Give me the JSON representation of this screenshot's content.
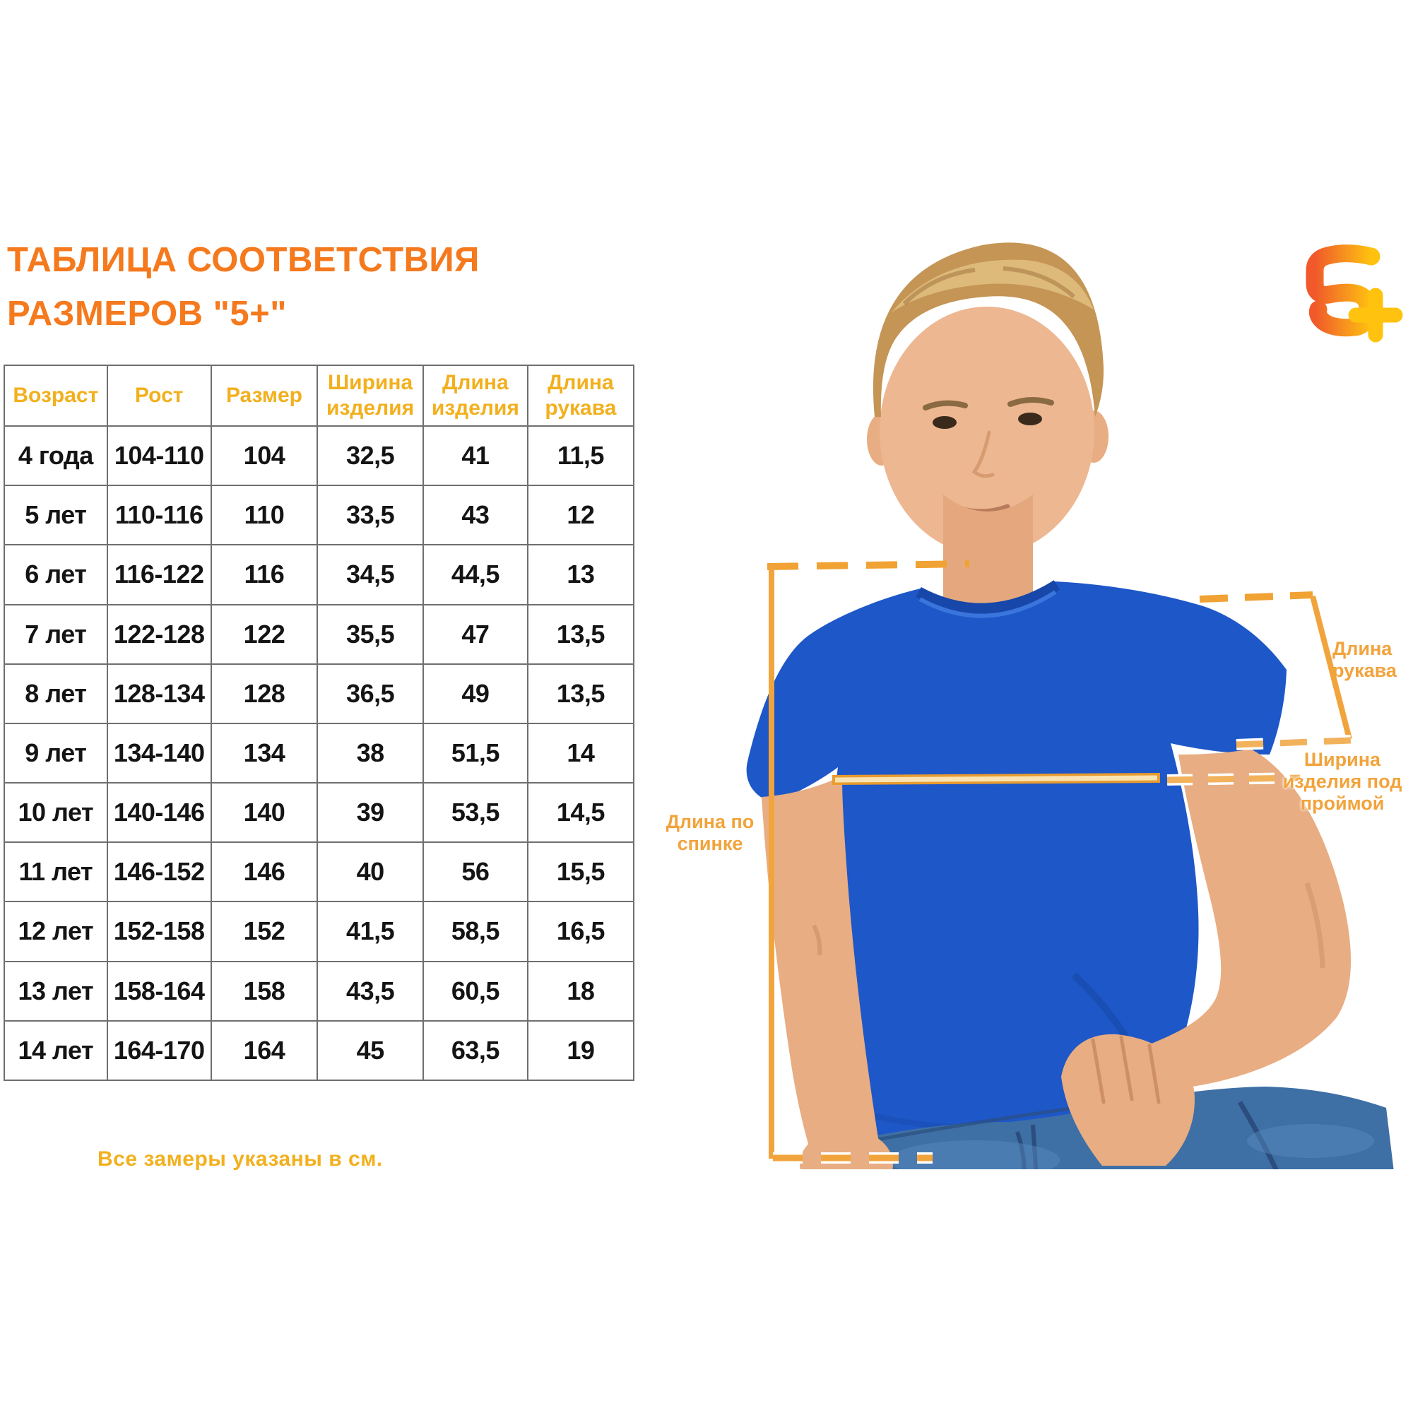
{
  "title": {
    "line1": "ТАБЛИЦА СООТВЕТСТВИЯ",
    "line2": "РАЗМЕРОВ \"5+\""
  },
  "logo": {
    "text": "5+"
  },
  "table": {
    "headers": [
      "Возраст",
      "Рост",
      "Размер",
      "Ширина изделия",
      "Длина изделия",
      "Длина рукава"
    ],
    "rows": [
      [
        "4 года",
        "104-110",
        "104",
        "32,5",
        "41",
        "11,5"
      ],
      [
        "5 лет",
        "110-116",
        "110",
        "33,5",
        "43",
        "12"
      ],
      [
        "6 лет",
        "116-122",
        "116",
        "34,5",
        "44,5",
        "13"
      ],
      [
        "7 лет",
        "122-128",
        "122",
        "35,5",
        "47",
        "13,5"
      ],
      [
        "8 лет",
        "128-134",
        "128",
        "36,5",
        "49",
        "13,5"
      ],
      [
        "9 лет",
        "134-140",
        "134",
        "38",
        "51,5",
        "14"
      ],
      [
        "10 лет",
        "140-146",
        "140",
        "39",
        "53,5",
        "14,5"
      ],
      [
        "11 лет",
        "146-152",
        "146",
        "40",
        "56",
        "15,5"
      ],
      [
        "12 лет",
        "152-158",
        "152",
        "41,5",
        "58,5",
        "16,5"
      ],
      [
        "13 лет",
        "158-164",
        "158",
        "43,5",
        "60,5",
        "18"
      ],
      [
        "14 лет",
        "164-170",
        "164",
        "45",
        "63,5",
        "19"
      ]
    ]
  },
  "diagram": {
    "labels": {
      "sleeve_length": "Длина рукава",
      "width_under_armhole": "Ширина изделия под проймой",
      "back_length": "Длина по спинке"
    }
  },
  "footer": {
    "note": "Все замеры указаны в см."
  },
  "colors": {
    "title_orange": "#F5791D",
    "table_header_gold": "#F2B01E",
    "annotation_orange": "#F2A33C",
    "logo_gradient_start": "#F1592B",
    "logo_gradient_end": "#FFC20E",
    "tshirt_blue": "#1E57C8"
  }
}
